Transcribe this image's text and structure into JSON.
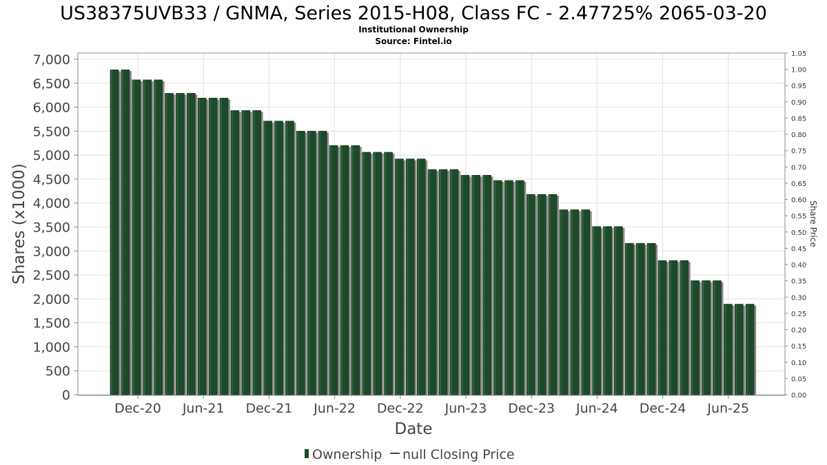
{
  "chart_data": {
    "type": "bar",
    "title": "US38375UVB33 / GNMA, Series 2015-H08, Class FC - 2.47725% 2065-03-20",
    "subtitle_lines": [
      "Institutional Ownership",
      "Source: Fintel.io"
    ],
    "xlabel": "Date",
    "ylabel": "Shares (x1000)",
    "y2label": "Share Price",
    "ylim": [
      0,
      7000
    ],
    "y2lim": [
      0,
      1.05
    ],
    "yticks": [
      "0",
      "500",
      "1,000",
      "1,500",
      "2,000",
      "2,500",
      "3,000",
      "3,500",
      "4,000",
      "4,500",
      "5,000",
      "5,500",
      "6,000",
      "6,500",
      "7,000"
    ],
    "y2ticks": [
      "0.00",
      "0.05",
      "0.10",
      "0.15",
      "0.20",
      "0.25",
      "0.30",
      "0.35",
      "0.40",
      "0.45",
      "0.50",
      "0.55",
      "0.60",
      "0.65",
      "0.70",
      "0.75",
      "0.80",
      "0.85",
      "0.90",
      "0.95",
      "1.00",
      "1.05"
    ],
    "xticks": [
      "Dec-20",
      "Jun-21",
      "Dec-21",
      "Jun-22",
      "Dec-22",
      "Jun-23",
      "Dec-23",
      "Jun-24",
      "Dec-24",
      "Jun-25"
    ],
    "grid": true,
    "legend_placement": "bottom",
    "series": [
      {
        "name": "Ownership",
        "color": "#1d4a2a",
        "values": [
          6780,
          6780,
          6570,
          6570,
          6570,
          6290,
          6290,
          6290,
          6190,
          6190,
          6190,
          5930,
          5930,
          5930,
          5710,
          5710,
          5710,
          5500,
          5500,
          5500,
          5200,
          5200,
          5200,
          5060,
          5060,
          5060,
          4920,
          4920,
          4920,
          4700,
          4700,
          4700,
          4580,
          4580,
          4580,
          4470,
          4470,
          4470,
          4180,
          4180,
          4180,
          3860,
          3860,
          3860,
          3510,
          3510,
          3510,
          3160,
          3160,
          3160,
          2800,
          2800,
          2800,
          2380,
          2380,
          2380,
          1890,
          1890,
          1890
        ]
      },
      {
        "name": "null Closing Price",
        "color": "#444444",
        "values": []
      }
    ]
  }
}
